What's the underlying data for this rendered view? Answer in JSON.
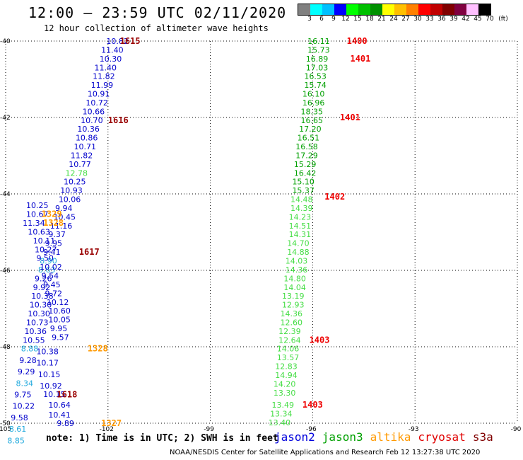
{
  "title": "12:00 – 23:59 UTC 02/11/2020",
  "subtitle": "12 hour collection of altimeter wave heights",
  "legend": {
    "colors": [
      "#808080",
      "#00ffff",
      "#00c0ff",
      "#0000ff",
      "#00ff00",
      "#00c000",
      "#009000",
      "#ffff00",
      "#ffc000",
      "#ff8000",
      "#ff0000",
      "#c00000",
      "#800000",
      "#800040",
      "#ffc0ff",
      "#000000"
    ],
    "labels": [
      "3",
      "6",
      "9",
      "12",
      "15",
      "18",
      "21",
      "24",
      "27",
      "30",
      "33",
      "36",
      "39",
      "42",
      "45",
      "70",
      "(ft)"
    ]
  },
  "axes": {
    "x_ticks": [
      "-105",
      "-102",
      "-99",
      "-96",
      "-93",
      "-90"
    ],
    "y_ticks": [
      "-40",
      "-42",
      "-44",
      "-46",
      "-48",
      "-50"
    ]
  },
  "note": "note: 1) Time is in UTC; 2) SWH is in feet",
  "satellites": [
    {
      "name": "jason2",
      "color": "#0000dd"
    },
    {
      "name": "jason3",
      "color": "#00a000"
    },
    {
      "name": "altika",
      "color": "#ff9900"
    },
    {
      "name": "cryosat",
      "color": "#e00000"
    },
    {
      "name": "s3a",
      "color": "#800000"
    }
  ],
  "credit": "NOAA/NESDIS Center for Satellite Applications and Research    Feb 12 13:27:38 UTC 2020",
  "colors": {
    "blue": "#0000cc",
    "lightblue": "#22aadd",
    "green": "#00a000",
    "lightgreen": "#44dd44",
    "orange": "#ff9900",
    "red": "#ee0000",
    "darkred": "#990000"
  },
  "map": {
    "lon_min": -105,
    "lon_max": -90,
    "lat_min": -50,
    "lat_max": -40,
    "observations": [
      {
        "v": "10.82",
        "lon": -102.05,
        "lat": -40.0,
        "c": "blue"
      },
      {
        "v": "11.40",
        "lon": -102.2,
        "lat": -40.23,
        "c": "blue"
      },
      {
        "v": "10.30",
        "lon": -102.25,
        "lat": -40.46,
        "c": "blue"
      },
      {
        "v": "11.40",
        "lon": -102.4,
        "lat": -40.69,
        "c": "blue"
      },
      {
        "v": "11.82",
        "lon": -102.45,
        "lat": -40.92,
        "c": "blue"
      },
      {
        "v": "11.99",
        "lon": -102.5,
        "lat": -41.15,
        "c": "blue"
      },
      {
        "v": "10.91",
        "lon": -102.6,
        "lat": -41.38,
        "c": "blue"
      },
      {
        "v": "10.72",
        "lon": -102.65,
        "lat": -41.61,
        "c": "blue"
      },
      {
        "v": "10.66",
        "lon": -102.75,
        "lat": -41.84,
        "c": "blue"
      },
      {
        "v": "10.70",
        "lon": -102.8,
        "lat": -42.07,
        "c": "blue"
      },
      {
        "v": "10.36",
        "lon": -102.9,
        "lat": -42.3,
        "c": "blue"
      },
      {
        "v": "10.86",
        "lon": -102.95,
        "lat": -42.53,
        "c": "blue"
      },
      {
        "v": "10.71",
        "lon": -103.0,
        "lat": -42.76,
        "c": "blue"
      },
      {
        "v": "11.82",
        "lon": -103.1,
        "lat": -42.99,
        "c": "blue"
      },
      {
        "v": "10.77",
        "lon": -103.15,
        "lat": -43.22,
        "c": "blue"
      },
      {
        "v": "12.78",
        "lon": -103.25,
        "lat": -43.45,
        "c": "lightgreen"
      },
      {
        "v": "10.25",
        "lon": -103.3,
        "lat": -43.68,
        "c": "blue"
      },
      {
        "v": "10.93",
        "lon": -103.4,
        "lat": -43.91,
        "c": "blue"
      },
      {
        "v": "10.06",
        "lon": -103.45,
        "lat": -44.14,
        "c": "blue"
      },
      {
        "v": "9.94",
        "lon": -103.55,
        "lat": -44.37,
        "c": "blue"
      },
      {
        "v": "10.45",
        "lon": -103.6,
        "lat": -44.6,
        "c": "blue"
      },
      {
        "v": "11.16",
        "lon": -103.7,
        "lat": -44.83,
        "c": "blue"
      },
      {
        "v": "9.37",
        "lon": -103.75,
        "lat": -45.06,
        "c": "blue"
      },
      {
        "v": "9.95",
        "lon": -103.85,
        "lat": -45.29,
        "c": "blue"
      },
      {
        "v": "9.41",
        "lon": -103.9,
        "lat": -45.52,
        "c": "blue"
      },
      {
        "v": "8.90",
        "lon": -104.0,
        "lat": -45.75,
        "c": "lightblue"
      },
      {
        "v": "8.63",
        "lon": -104.05,
        "lat": -45.98,
        "c": "lightblue"
      },
      {
        "v": "9.26",
        "lon": -104.15,
        "lat": -46.21,
        "c": "blue"
      },
      {
        "v": "9.92",
        "lon": -104.2,
        "lat": -46.44,
        "c": "blue"
      },
      {
        "v": "10.38",
        "lon": -104.25,
        "lat": -46.67,
        "c": "blue"
      },
      {
        "v": "10.30",
        "lon": -104.3,
        "lat": -46.9,
        "c": "blue"
      },
      {
        "v": "10.30",
        "lon": -104.35,
        "lat": -47.13,
        "c": "blue"
      },
      {
        "v": "10.73",
        "lon": -104.4,
        "lat": -47.36,
        "c": "blue"
      },
      {
        "v": "10.36",
        "lon": -104.45,
        "lat": -47.59,
        "c": "blue"
      },
      {
        "v": "10.55",
        "lon": -104.5,
        "lat": -47.82,
        "c": "blue"
      },
      {
        "v": "10.38",
        "lon": -104.1,
        "lat": -48.12,
        "c": "blue"
      },
      {
        "v": "10.17",
        "lon": -104.1,
        "lat": -48.42,
        "c": "blue"
      },
      {
        "v": "10.15",
        "lon": -104.05,
        "lat": -48.72,
        "c": "blue"
      },
      {
        "v": "10.92",
        "lon": -104.0,
        "lat": -49.02,
        "c": "blue"
      },
      {
        "v": "10.15",
        "lon": -103.9,
        "lat": -49.24,
        "c": "blue"
      },
      {
        "v": "10.64",
        "lon": -103.75,
        "lat": -49.52,
        "c": "blue"
      },
      {
        "v": "10.41",
        "lon": -103.75,
        "lat": -49.78,
        "c": "blue"
      },
      {
        "v": "9.89",
        "lon": -103.5,
        "lat": -50.0,
        "c": "blue"
      },
      {
        "v": "10.25",
        "lon": -104.4,
        "lat": -44.3,
        "c": "blue"
      },
      {
        "v": "10.67",
        "lon": -104.4,
        "lat": -44.53,
        "c": "blue"
      },
      {
        "v": "11.34",
        "lon": -104.5,
        "lat": -44.76,
        "c": "blue"
      },
      {
        "v": "10.63",
        "lon": -104.35,
        "lat": -44.99,
        "c": "blue"
      },
      {
        "v": "10.11",
        "lon": -104.2,
        "lat": -45.22,
        "c": "blue"
      },
      {
        "v": "10.27",
        "lon": -104.15,
        "lat": -45.45,
        "c": "blue"
      },
      {
        "v": "9.50",
        "lon": -104.1,
        "lat": -45.68,
        "c": "blue"
      },
      {
        "v": "10.02",
        "lon": -104.0,
        "lat": -45.91,
        "c": "blue"
      },
      {
        "v": "9.54",
        "lon": -103.95,
        "lat": -46.14,
        "c": "blue"
      },
      {
        "v": "9.45",
        "lon": -103.9,
        "lat": -46.37,
        "c": "blue"
      },
      {
        "v": "9.72",
        "lon": -103.85,
        "lat": -46.6,
        "c": "blue"
      },
      {
        "v": "10.12",
        "lon": -103.8,
        "lat": -46.83,
        "c": "blue"
      },
      {
        "v": "10.60",
        "lon": -103.75,
        "lat": -47.06,
        "c": "blue"
      },
      {
        "v": "10.05",
        "lon": -103.75,
        "lat": -47.29,
        "c": "blue"
      },
      {
        "v": "9.95",
        "lon": -103.7,
        "lat": -47.52,
        "c": "blue"
      },
      {
        "v": "9.57",
        "lon": -103.65,
        "lat": -47.75,
        "c": "blue"
      },
      {
        "v": "8.88",
        "lon": -104.55,
        "lat": -48.05,
        "c": "lightblue"
      },
      {
        "v": "9.28",
        "lon": -104.6,
        "lat": -48.35,
        "c": "blue"
      },
      {
        "v": "9.29",
        "lon": -104.65,
        "lat": -48.65,
        "c": "blue"
      },
      {
        "v": "8.34",
        "lon": -104.7,
        "lat": -48.95,
        "c": "lightblue"
      },
      {
        "v": "9.75",
        "lon": -104.75,
        "lat": -49.25,
        "c": "blue"
      },
      {
        "v": "10.22",
        "lon": -104.8,
        "lat": -49.55,
        "c": "blue"
      },
      {
        "v": "9.58",
        "lon": -104.85,
        "lat": -49.85,
        "c": "blue"
      },
      {
        "v": "8.61",
        "lon": -104.9,
        "lat": -50.15,
        "c": "lightblue"
      },
      {
        "v": "8.85",
        "lon": -104.95,
        "lat": -50.45,
        "c": "lightblue"
      },
      {
        "v": "16.11",
        "lon": -96.15,
        "lat": -40.0,
        "c": "green"
      },
      {
        "v": "15.73",
        "lon": -96.15,
        "lat": -40.23,
        "c": "green"
      },
      {
        "v": "16.89",
        "lon": -96.2,
        "lat": -40.46,
        "c": "green"
      },
      {
        "v": "17.03",
        "lon": -96.2,
        "lat": -40.69,
        "c": "green"
      },
      {
        "v": "16.53",
        "lon": -96.25,
        "lat": -40.92,
        "c": "green"
      },
      {
        "v": "15.74",
        "lon": -96.25,
        "lat": -41.15,
        "c": "green"
      },
      {
        "v": "16.10",
        "lon": -96.3,
        "lat": -41.38,
        "c": "green"
      },
      {
        "v": "16.96",
        "lon": -96.3,
        "lat": -41.61,
        "c": "green"
      },
      {
        "v": "18.35",
        "lon": -96.35,
        "lat": -41.84,
        "c": "green"
      },
      {
        "v": "16.65",
        "lon": -96.35,
        "lat": -42.07,
        "c": "green"
      },
      {
        "v": "17.20",
        "lon": -96.4,
        "lat": -42.3,
        "c": "green"
      },
      {
        "v": "16.51",
        "lon": -96.45,
        "lat": -42.53,
        "c": "green"
      },
      {
        "v": "16.58",
        "lon": -96.5,
        "lat": -42.76,
        "c": "green"
      },
      {
        "v": "17.29",
        "lon": -96.5,
        "lat": -42.99,
        "c": "green"
      },
      {
        "v": "15.29",
        "lon": -96.55,
        "lat": -43.22,
        "c": "green"
      },
      {
        "v": "16.42",
        "lon": -96.55,
        "lat": -43.45,
        "c": "green"
      },
      {
        "v": "15.10",
        "lon": -96.6,
        "lat": -43.68,
        "c": "green"
      },
      {
        "v": "15.37",
        "lon": -96.6,
        "lat": -43.91,
        "c": "green"
      },
      {
        "v": "14.48",
        "lon": -96.65,
        "lat": -44.14,
        "c": "lightgreen"
      },
      {
        "v": "14.39",
        "lon": -96.65,
        "lat": -44.37,
        "c": "lightgreen"
      },
      {
        "v": "14.23",
        "lon": -96.7,
        "lat": -44.6,
        "c": "lightgreen"
      },
      {
        "v": "14.51",
        "lon": -96.7,
        "lat": -44.83,
        "c": "lightgreen"
      },
      {
        "v": "14.31",
        "lon": -96.7,
        "lat": -45.06,
        "c": "lightgreen"
      },
      {
        "v": "14.70",
        "lon": -96.75,
        "lat": -45.29,
        "c": "lightgreen"
      },
      {
        "v": "14.88",
        "lon": -96.75,
        "lat": -45.52,
        "c": "lightgreen"
      },
      {
        "v": "14.03",
        "lon": -96.8,
        "lat": -45.75,
        "c": "lightgreen"
      },
      {
        "v": "14.36",
        "lon": -96.8,
        "lat": -45.98,
        "c": "lightgreen"
      },
      {
        "v": "14.80",
        "lon": -96.85,
        "lat": -46.21,
        "c": "lightgreen"
      },
      {
        "v": "14.04",
        "lon": -96.85,
        "lat": -46.44,
        "c": "lightgreen"
      },
      {
        "v": "13.19",
        "lon": -96.9,
        "lat": -46.67,
        "c": "lightgreen"
      },
      {
        "v": "12.93",
        "lon": -96.9,
        "lat": -46.9,
        "c": "lightgreen"
      },
      {
        "v": "14.36",
        "lon": -96.95,
        "lat": -47.13,
        "c": "lightgreen"
      },
      {
        "v": "12.60",
        "lon": -96.95,
        "lat": -47.36,
        "c": "lightgreen"
      },
      {
        "v": "12.39",
        "lon": -97.0,
        "lat": -47.59,
        "c": "lightgreen"
      },
      {
        "v": "12.64",
        "lon": -97.0,
        "lat": -47.82,
        "c": "lightgreen"
      },
      {
        "v": "14.06",
        "lon": -97.05,
        "lat": -48.05,
        "c": "lightgreen"
      },
      {
        "v": "13.57",
        "lon": -97.05,
        "lat": -48.28,
        "c": "lightgreen"
      },
      {
        "v": "12.83",
        "lon": -97.1,
        "lat": -48.51,
        "c": "lightgreen"
      },
      {
        "v": "14.94",
        "lon": -97.1,
        "lat": -48.74,
        "c": "lightgreen"
      },
      {
        "v": "14.20",
        "lon": -97.15,
        "lat": -48.97,
        "c": "lightgreen"
      },
      {
        "v": "13.30",
        "lon": -97.15,
        "lat": -49.2,
        "c": "lightgreen"
      },
      {
        "v": "13.49",
        "lon": -97.2,
        "lat": -49.52,
        "c": "lightgreen"
      },
      {
        "v": "13.34",
        "lon": -97.25,
        "lat": -49.75,
        "c": "lightgreen"
      },
      {
        "v": "13.40",
        "lon": -97.3,
        "lat": -49.98,
        "c": "lightgreen"
      }
    ],
    "pass_labels": [
      {
        "t": "1615",
        "lon": -101.65,
        "lat": -40.0,
        "c": "darkred"
      },
      {
        "t": "1400",
        "lon": -95.0,
        "lat": -40.0,
        "c": "red"
      },
      {
        "t": "1401",
        "lon": -94.9,
        "lat": -40.46,
        "c": "red"
      },
      {
        "t": "1616",
        "lon": -102.0,
        "lat": -42.07,
        "c": "darkred"
      },
      {
        "t": "1401",
        "lon": -95.2,
        "lat": -42.0,
        "c": "red"
      },
      {
        "t": "1402",
        "lon": -95.65,
        "lat": -44.07,
        "c": "red"
      },
      {
        "t": "1329",
        "lon": -103.95,
        "lat": -44.53,
        "c": "orange"
      },
      {
        "t": "1328",
        "lon": -103.9,
        "lat": -44.76,
        "c": "orange"
      },
      {
        "t": "1617",
        "lon": -102.85,
        "lat": -45.52,
        "c": "darkred"
      },
      {
        "t": "1403",
        "lon": -96.1,
        "lat": -47.82,
        "c": "red"
      },
      {
        "t": "1328",
        "lon": -102.6,
        "lat": -48.05,
        "c": "orange"
      },
      {
        "t": "1618",
        "lon": -103.5,
        "lat": -49.25,
        "c": "darkred"
      },
      {
        "t": "1403",
        "lon": -96.3,
        "lat": -49.52,
        "c": "red"
      },
      {
        "t": "1327",
        "lon": -102.2,
        "lat": -50.0,
        "c": "orange"
      }
    ]
  }
}
